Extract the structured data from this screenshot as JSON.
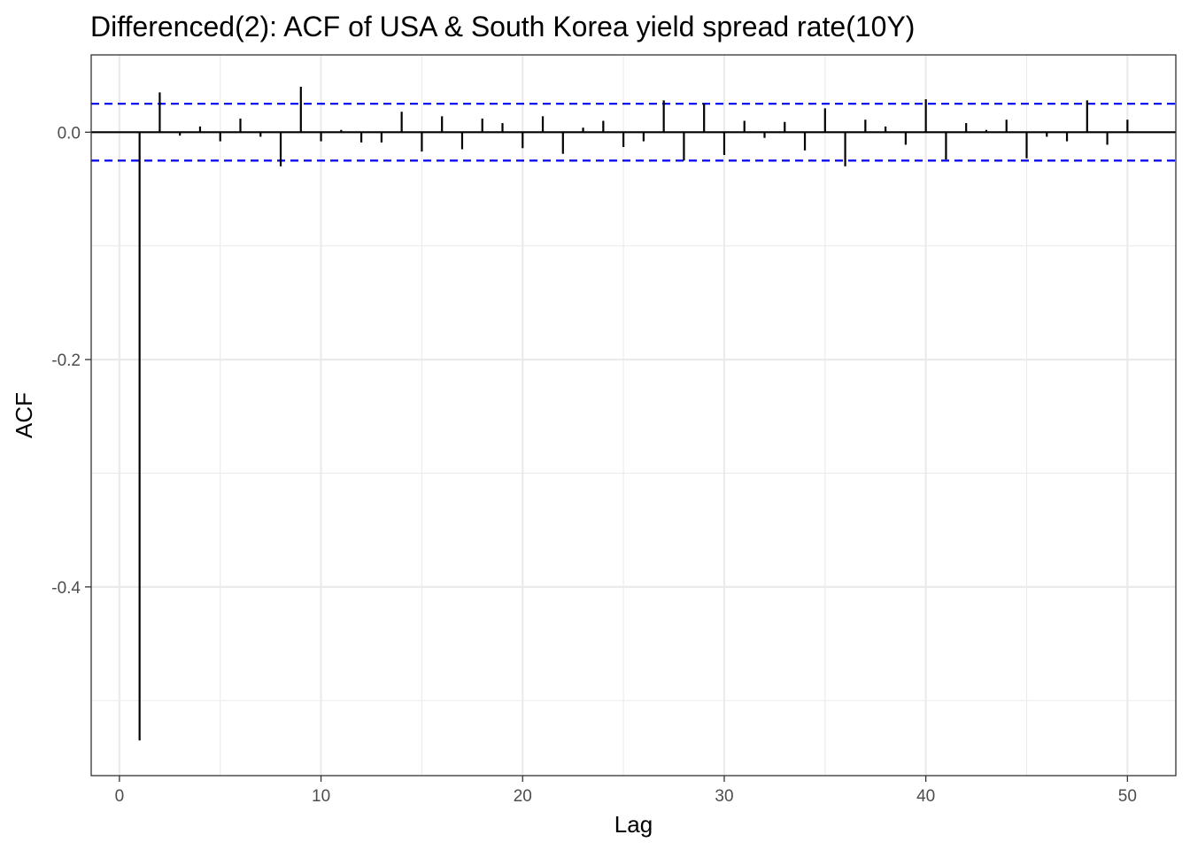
{
  "chart_data": {
    "type": "bar",
    "title": "Differenced(2): ACF of USA & South Korea yield spread rate(10Y)",
    "xlabel": "Lag",
    "ylabel": "ACF",
    "x_ticks": [
      "0",
      "10",
      "20",
      "30",
      "40",
      "50"
    ],
    "y_ticks": [
      "-0.4",
      "-0.2",
      "0.0"
    ],
    "xlim": [
      -1.4,
      52.4
    ],
    "ylim": [
      -0.566,
      0.068
    ],
    "grid": true,
    "confidence_bound": 0.025,
    "lags": [
      1,
      2,
      3,
      4,
      5,
      6,
      7,
      8,
      9,
      10,
      11,
      12,
      13,
      14,
      15,
      16,
      17,
      18,
      19,
      20,
      21,
      22,
      23,
      24,
      25,
      26,
      27,
      28,
      29,
      30,
      31,
      32,
      33,
      34,
      35,
      36,
      37,
      38,
      39,
      40,
      41,
      42,
      43,
      44,
      45,
      46,
      47,
      48,
      49,
      50
    ],
    "acf": [
      -0.535,
      0.035,
      -0.003,
      0.005,
      -0.008,
      0.012,
      -0.004,
      -0.03,
      0.04,
      -0.008,
      0.002,
      -0.009,
      -0.009,
      0.018,
      -0.017,
      0.014,
      -0.015,
      0.012,
      0.008,
      -0.014,
      0.014,
      -0.019,
      0.004,
      0.01,
      -0.013,
      -0.008,
      0.028,
      -0.025,
      0.025,
      -0.02,
      0.01,
      -0.005,
      0.009,
      -0.016,
      0.021,
      -0.03,
      0.011,
      0.005,
      -0.011,
      0.029,
      -0.024,
      0.008,
      0.002,
      0.011,
      -0.023,
      -0.004,
      -0.008,
      0.028,
      -0.011,
      0.011
    ]
  },
  "colors": {
    "bound_line": "#0000ee",
    "bar": "#000000",
    "zero_line": "#000000",
    "grid": "#ebebeb",
    "panel_border": "#333333"
  }
}
